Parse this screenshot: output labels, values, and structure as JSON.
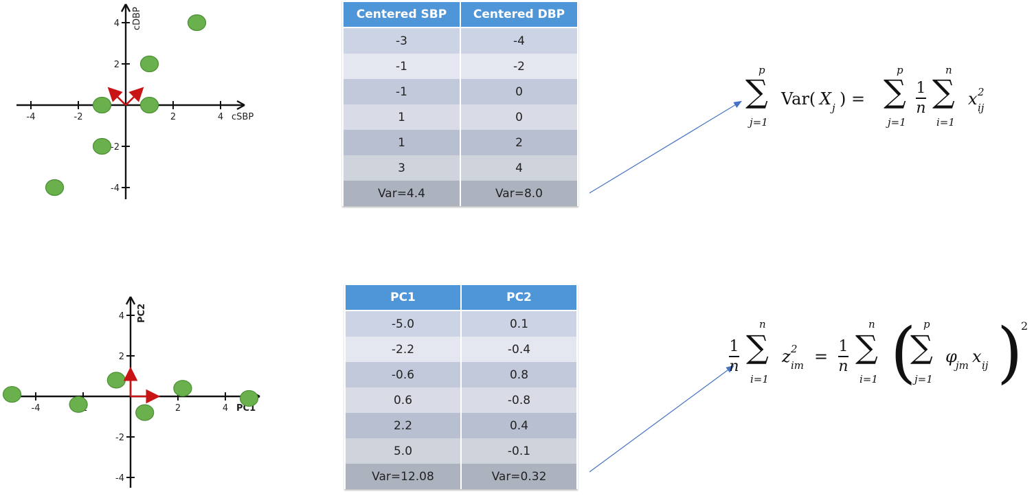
{
  "charts": [
    {
      "type": "scatter",
      "xlabel": "cSBP",
      "ylabel": "cDBP",
      "x_ticks": [
        -4,
        -2,
        2,
        4
      ],
      "y_ticks": [
        4,
        2,
        -2,
        -4
      ],
      "y_tick_labels": [
        "4",
        "2",
        "-2",
        "-4"
      ],
      "points": [
        {
          "x": -3,
          "y": -4
        },
        {
          "x": -1,
          "y": -2
        },
        {
          "x": -1,
          "y": 0
        },
        {
          "x": 1,
          "y": 0
        },
        {
          "x": 1,
          "y": 2
        },
        {
          "x": 3,
          "y": 4
        }
      ],
      "vectors": [
        {
          "x": 0.71,
          "y": 0.71,
          "color": "#c81414"
        },
        {
          "x": -0.71,
          "y": 0.71,
          "color": "#c81414"
        }
      ]
    },
    {
      "type": "scatter",
      "xlabel": "PC1",
      "ylabel": "PC2",
      "x_ticks": [
        -4,
        -2,
        2,
        4
      ],
      "y_ticks": [
        4,
        2,
        -2,
        -4
      ],
      "y_tick_labels": [
        "4",
        "2",
        "-2",
        "-4"
      ],
      "points": [
        {
          "x": -5.0,
          "y": 0.1
        },
        {
          "x": -2.2,
          "y": -0.4
        },
        {
          "x": -0.6,
          "y": 0.8
        },
        {
          "x": 0.6,
          "y": -0.8
        },
        {
          "x": 2.2,
          "y": 0.4
        },
        {
          "x": 5.0,
          "y": -0.1
        }
      ],
      "vectors": [
        {
          "x": 1,
          "y": 0,
          "color": "#c81414"
        },
        {
          "x": 0,
          "y": 1,
          "color": "#c81414"
        }
      ]
    }
  ],
  "chart_data": [
    {
      "type": "table",
      "columns": [
        "Centered SBP",
        "Centered DBP"
      ],
      "rows": [
        [
          "-3",
          "-4"
        ],
        [
          "-1",
          "-2"
        ],
        [
          "-1",
          "0"
        ],
        [
          "1",
          "0"
        ],
        [
          "1",
          "2"
        ],
        [
          "3",
          "4"
        ]
      ],
      "footer": [
        "Var=4.4",
        "Var=8.0"
      ]
    },
    {
      "type": "table",
      "columns": [
        "PC1",
        "PC2"
      ],
      "rows": [
        [
          "-5.0",
          "0.1"
        ],
        [
          "-2.2",
          "-0.4"
        ],
        [
          "-0.6",
          "0.8"
        ],
        [
          "0.6",
          "-0.8"
        ],
        [
          "2.2",
          "0.4"
        ],
        [
          "5.0",
          "-0.1"
        ]
      ],
      "footer": [
        "Var=12.08",
        "Var=0.32"
      ]
    }
  ],
  "formulas": {
    "f1": {
      "sum_upper": "p",
      "sum_lower": "j=1",
      "var_text": "Var(",
      "var_arg": "X",
      "var_sub": "j",
      "close": ") =",
      "sum2_upper": "p",
      "sum2_lower": "j=1",
      "frac_num": "1",
      "frac_den": "n",
      "sum3_upper": "n",
      "sum3_lower": "i=1",
      "term": "x",
      "term_sup": "2",
      "term_sub": "ij"
    },
    "f2": {
      "frac_num": "1",
      "frac_den": "n",
      "sum_upper": "n",
      "sum_lower": "i=1",
      "term": "z",
      "term_sup": "2",
      "term_sub": "im",
      "eq": "=",
      "frac2_num": "1",
      "frac2_den": "n",
      "sum2_upper": "n",
      "sum2_lower": "i=1",
      "sum3_upper": "p",
      "sum3_lower": "j=1",
      "phi": "φ",
      "phi_sub": "jm",
      "x": "x",
      "x_sub": "ij",
      "outer_sup": "2"
    }
  },
  "colors": {
    "point": "#6ab04c",
    "vector": "#c81414",
    "pointer_arrow": "#4472c4",
    "table_header": "#4f96d8"
  }
}
